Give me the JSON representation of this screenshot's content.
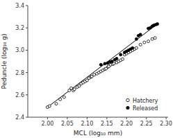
{
  "chart_data": {
    "type": "scatter",
    "xlabel": "MCL (log₁₀ mm)",
    "ylabel": "Peduncle (log₁₀ g)",
    "xlim": [
      1.95,
      2.305
    ],
    "ylim": [
      2.4,
      3.4
    ],
    "xticks": [
      {
        "value": 2.0,
        "label": "2.00"
      },
      2.05,
      {
        "value": 2.1,
        "label": "2.10"
      },
      2.15,
      {
        "value": 2.2,
        "label": "2.20"
      },
      2.25,
      {
        "value": 2.3,
        "label": "2.30"
      }
    ],
    "yticks": [
      2.4,
      2.6,
      2.8,
      {
        "value": 3.0,
        "label": "3.0"
      },
      3.2,
      3.4
    ],
    "grid": false,
    "legend": "lower right",
    "series": [
      {
        "type": "line",
        "color": "black",
        "line_style": "solid",
        "x": [
          2.0,
          2.278
        ],
        "values": [
          2.49,
          3.235
        ]
      },
      {
        "name": "Hatchery",
        "type": "scatter",
        "marker": "open-circle",
        "color": "black",
        "x": [
          2.0,
          2.005,
          2.022,
          2.032,
          2.042,
          2.055,
          2.06,
          2.065,
          2.068,
          2.075,
          2.08,
          2.085,
          2.09,
          2.095,
          2.1,
          2.105,
          2.11,
          2.112,
          2.118,
          2.125,
          2.13,
          2.135,
          2.14,
          2.145,
          2.148,
          2.153,
          2.155,
          2.16,
          2.165,
          2.168,
          2.175,
          2.18,
          2.185,
          2.19,
          2.195,
          2.2,
          2.205,
          2.21,
          2.215,
          2.22,
          2.225,
          2.235,
          2.245,
          2.255,
          2.265,
          2.272
        ],
        "values": [
          2.49,
          2.5,
          2.52,
          2.56,
          2.58,
          2.64,
          2.66,
          2.64,
          2.65,
          2.67,
          2.68,
          2.7,
          2.71,
          2.72,
          2.73,
          2.75,
          2.76,
          2.765,
          2.78,
          2.79,
          2.8,
          2.81,
          2.82,
          2.83,
          2.835,
          2.85,
          2.855,
          2.87,
          2.875,
          2.88,
          2.89,
          2.9,
          2.91,
          2.92,
          2.96,
          2.97,
          2.98,
          2.99,
          3.0,
          3.01,
          3.02,
          3.05,
          3.07,
          3.08,
          3.1,
          3.11
        ]
      },
      {
        "name": "Released",
        "type": "scatter",
        "marker": "circle",
        "color": "black",
        "x": [
          2.135,
          2.145,
          2.152,
          2.158,
          2.163,
          2.17,
          2.175,
          2.185,
          2.195,
          2.2,
          2.205,
          2.21,
          2.215,
          2.225,
          2.23,
          2.235,
          2.255,
          2.26,
          2.265,
          2.268,
          2.27,
          2.275,
          2.278
        ],
        "values": [
          2.87,
          2.88,
          2.885,
          2.895,
          2.9,
          2.915,
          2.925,
          2.96,
          2.98,
          2.99,
          3.0,
          3.01,
          3.02,
          3.1,
          3.13,
          3.14,
          3.195,
          3.2,
          3.215,
          3.22,
          3.225,
          3.23,
          3.235
        ]
      }
    ]
  }
}
